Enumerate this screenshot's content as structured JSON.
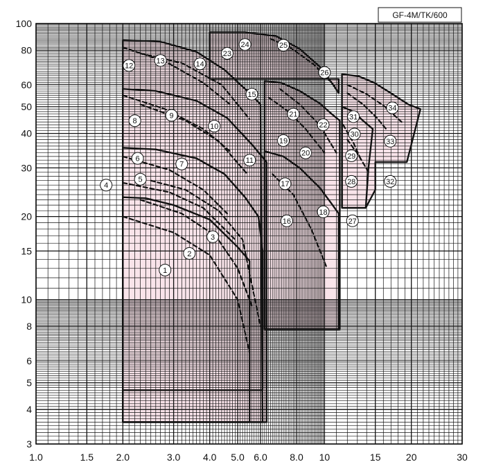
{
  "chart_data": {
    "type": "line",
    "title": "GF-4M/TK/600",
    "xscale": "log",
    "yscale": "log",
    "xlim": [
      1.0,
      30
    ],
    "ylim": [
      3,
      100
    ],
    "grid": true,
    "region_color": "#f9e4ea",
    "x_ticks": [
      {
        "value": 1.0,
        "label": "1.0"
      },
      {
        "value": 1.5,
        "label": "1.5"
      },
      {
        "value": 2.0,
        "label": "2.0"
      },
      {
        "value": 3.0,
        "label": "3.0"
      },
      {
        "value": 4.0,
        "label": "4.0"
      },
      {
        "value": 5.0,
        "label": "5.0"
      },
      {
        "value": 6.0,
        "label": "6.0"
      },
      {
        "value": 8.0,
        "label": "8.0"
      },
      {
        "value": 10,
        "label": "10"
      },
      {
        "value": 15,
        "label": "15"
      },
      {
        "value": 20,
        "label": "20"
      },
      {
        "value": 30,
        "label": "30"
      }
    ],
    "y_ticks": [
      {
        "value": 100,
        "label": "100"
      },
      {
        "value": 80,
        "label": "80"
      },
      {
        "value": 60,
        "label": "60"
      },
      {
        "value": 50,
        "label": "50"
      },
      {
        "value": 40,
        "label": "40"
      },
      {
        "value": 30,
        "label": "30"
      },
      {
        "value": 20,
        "label": "20"
      },
      {
        "value": 15,
        "label": "15"
      },
      {
        "value": 10,
        "label": "10"
      },
      {
        "value": 8,
        "label": "8"
      },
      {
        "value": 6,
        "label": "6"
      },
      {
        "value": 5,
        "label": "5"
      },
      {
        "value": 4,
        "label": "4"
      },
      {
        "value": 3,
        "label": "3"
      }
    ],
    "regions": [
      {
        "group": "A",
        "points": [
          [
            2.0,
            3.6
          ],
          [
            2.0,
            23.5
          ],
          [
            2.4,
            23.3
          ],
          [
            3.0,
            22.0
          ],
          [
            4.0,
            19.5
          ],
          [
            5.0,
            15.5
          ],
          [
            5.5,
            13.8
          ],
          [
            5.5,
            3.6
          ]
        ]
      },
      {
        "group": "B",
        "points": [
          [
            2.0,
            4.7
          ],
          [
            2.0,
            35.5
          ],
          [
            2.6,
            35.0
          ],
          [
            3.6,
            32.5
          ],
          [
            4.5,
            28.5
          ],
          [
            5.3,
            23.5
          ],
          [
            5.9,
            20.0
          ],
          [
            6.1,
            15.0
          ],
          [
            6.1,
            4.7
          ]
        ]
      },
      {
        "group": "C",
        "points": [
          [
            2.0,
            3.6
          ],
          [
            2.0,
            58.0
          ],
          [
            2.6,
            57.0
          ],
          [
            3.6,
            52.5
          ],
          [
            4.6,
            45.5
          ],
          [
            5.6,
            36.5
          ],
          [
            6.3,
            31.5
          ],
          [
            6.3,
            3.6
          ]
        ]
      },
      {
        "group": "D",
        "points": [
          [
            2.0,
            3.6
          ],
          [
            2.0,
            87.0
          ],
          [
            2.7,
            86.0
          ],
          [
            3.6,
            79.0
          ],
          [
            4.5,
            68.0
          ],
          [
            5.4,
            57.0
          ],
          [
            6.0,
            51.0
          ],
          [
            6.1,
            3.6
          ]
        ]
      },
      {
        "group": "E",
        "points": [
          [
            6.2,
            7.8
          ],
          [
            6.2,
            34.5
          ],
          [
            7.2,
            33.0
          ],
          [
            8.2,
            30.0
          ],
          [
            9.6,
            25.5
          ],
          [
            10.5,
            22.5
          ],
          [
            11.2,
            20.5
          ],
          [
            11.2,
            7.8
          ]
        ]
      },
      {
        "group": "F",
        "points": [
          [
            6.2,
            7.8
          ],
          [
            6.2,
            62.0
          ],
          [
            7.1,
            61.0
          ],
          [
            8.2,
            57.0
          ],
          [
            9.6,
            51.5
          ],
          [
            10.6,
            47.0
          ],
          [
            11.3,
            44.5
          ],
          [
            11.3,
            7.8
          ]
        ]
      },
      {
        "group": "G",
        "points": [
          [
            4.0,
            93.0
          ],
          [
            5.3,
            93.0
          ],
          [
            6.8,
            90.0
          ],
          [
            8.2,
            81.0
          ],
          [
            9.6,
            70.0
          ],
          [
            10.6,
            61.0
          ],
          [
            11.2,
            56.0
          ],
          [
            11.2,
            63.0
          ],
          [
            4.0,
            63.0
          ]
        ]
      },
      {
        "group": "H",
        "points": [
          [
            11.5,
            21.5
          ],
          [
            11.5,
            50.0
          ],
          [
            12.6,
            48.0
          ],
          [
            13.6,
            44.5
          ],
          [
            14.7,
            41.5
          ],
          [
            14.2,
            30.0
          ],
          [
            13.9,
            21.5
          ]
        ]
      },
      {
        "group": "I",
        "points": [
          [
            11.5,
            21.5
          ],
          [
            11.5,
            65.5
          ],
          [
            13.1,
            64.5
          ],
          [
            14.9,
            61.0
          ],
          [
            17.2,
            55.5
          ],
          [
            19.5,
            51.0
          ],
          [
            21.5,
            49.0
          ],
          [
            19.3,
            31.5
          ],
          [
            15.0,
            31.5
          ],
          [
            15.0,
            25.0
          ],
          [
            13.9,
            21.5
          ]
        ]
      }
    ],
    "series": [
      {
        "style": "dashed",
        "points": [
          [
            2.0,
            20.0
          ],
          [
            3.0,
            17.5
          ],
          [
            4.0,
            14.5
          ],
          [
            5.0,
            10.0
          ],
          [
            5.5,
            6.4
          ]
        ]
      },
      {
        "style": "dashed",
        "points": [
          [
            2.3,
            23.0
          ],
          [
            3.2,
            20.5
          ],
          [
            4.2,
            17.0
          ],
          [
            5.0,
            13.0
          ],
          [
            5.6,
            9.5
          ]
        ]
      },
      {
        "style": "dashed",
        "points": [
          [
            2.5,
            27.0
          ],
          [
            3.3,
            25.0
          ],
          [
            4.3,
            21.0
          ],
          [
            5.2,
            16.5
          ],
          [
            6.0,
            8.0
          ]
        ]
      },
      {
        "style": "dashed",
        "points": [
          [
            2.0,
            26.5
          ],
          [
            2.9,
            24.5
          ],
          [
            3.8,
            21.5
          ],
          [
            4.9,
            16.5
          ]
        ]
      },
      {
        "style": "dashed",
        "points": [
          [
            2.0,
            33.0
          ],
          [
            2.9,
            29.5
          ],
          [
            3.8,
            25.0
          ],
          [
            4.6,
            20.5
          ]
        ]
      },
      {
        "style": "dashed",
        "points": [
          [
            2.0,
            55.0
          ],
          [
            2.8,
            49.0
          ],
          [
            3.8,
            41.5
          ],
          [
            4.7,
            34.5
          ]
        ]
      },
      {
        "style": "dashed",
        "points": [
          [
            2.3,
            51.0
          ],
          [
            3.3,
            44.5
          ],
          [
            4.3,
            37.5
          ],
          [
            5.4,
            28.5
          ]
        ]
      },
      {
        "style": "dashed",
        "points": [
          [
            2.0,
            82.0
          ],
          [
            2.8,
            73.0
          ],
          [
            3.8,
            61.0
          ],
          [
            4.7,
            51.0
          ]
        ]
      },
      {
        "style": "dashed",
        "points": [
          [
            2.3,
            78.0
          ],
          [
            3.2,
            72.0
          ],
          [
            4.4,
            60.0
          ],
          [
            5.5,
            45.0
          ]
        ]
      },
      {
        "style": "dashed",
        "points": [
          [
            6.6,
            28.5
          ],
          [
            7.8,
            24.0
          ],
          [
            9.0,
            18.0
          ],
          [
            10.2,
            13.0
          ]
        ]
      },
      {
        "style": "dashed",
        "points": [
          [
            6.4,
            54.0
          ],
          [
            7.5,
            48.0
          ],
          [
            8.6,
            41.5
          ],
          [
            10.0,
            34.0
          ]
        ]
      },
      {
        "style": "dashed",
        "points": [
          [
            7.0,
            58.0
          ],
          [
            8.2,
            51.0
          ],
          [
            9.6,
            43.0
          ],
          [
            11.0,
            34.0
          ]
        ]
      },
      {
        "style": "dashed",
        "points": [
          [
            6.5,
            88.0
          ],
          [
            7.6,
            82.0
          ],
          [
            9.2,
            71.0
          ],
          [
            11.0,
            58.5
          ]
        ]
      },
      {
        "style": "dashed",
        "points": [
          [
            11.6,
            43.0
          ],
          [
            12.6,
            37.0
          ],
          [
            13.4,
            32.0
          ]
        ]
      },
      {
        "style": "dashed",
        "points": [
          [
            12.0,
            38.0
          ],
          [
            13.2,
            33.0
          ],
          [
            14.2,
            29.0
          ]
        ]
      },
      {
        "style": "dashed",
        "points": [
          [
            12.0,
            56.0
          ],
          [
            13.6,
            51.0
          ],
          [
            15.2,
            45.5
          ],
          [
            16.5,
            41.0
          ]
        ]
      },
      {
        "style": "dashed",
        "points": [
          [
            12.0,
            60.0
          ],
          [
            14.0,
            55.5
          ],
          [
            16.2,
            50.0
          ],
          [
            18.5,
            44.0
          ]
        ]
      }
    ],
    "annotations": [
      {
        "label": "1",
        "x": 2.8,
        "y": 12.8
      },
      {
        "label": "2",
        "x": 3.4,
        "y": 14.7
      },
      {
        "label": "3",
        "x": 4.1,
        "y": 16.9
      },
      {
        "label": "4",
        "x": 1.75,
        "y": 26.0
      },
      {
        "label": "5",
        "x": 2.3,
        "y": 27.3
      },
      {
        "label": "6",
        "x": 2.25,
        "y": 32.5
      },
      {
        "label": "7",
        "x": 3.2,
        "y": 31.0
      },
      {
        "label": "8",
        "x": 2.2,
        "y": 44.5
      },
      {
        "label": "9",
        "x": 2.95,
        "y": 46.5
      },
      {
        "label": "10",
        "x": 4.15,
        "y": 42.5
      },
      {
        "label": "11",
        "x": 5.5,
        "y": 32.0
      },
      {
        "label": "12",
        "x": 2.1,
        "y": 70.5
      },
      {
        "label": "13",
        "x": 2.7,
        "y": 73.5
      },
      {
        "label": "14",
        "x": 3.7,
        "y": 71.5
      },
      {
        "label": "15",
        "x": 5.6,
        "y": 55.5
      },
      {
        "label": "16",
        "x": 7.4,
        "y": 19.3
      },
      {
        "label": "17",
        "x": 7.3,
        "y": 26.3
      },
      {
        "label": "18",
        "x": 9.9,
        "y": 20.8
      },
      {
        "label": "19",
        "x": 7.2,
        "y": 37.7
      },
      {
        "label": "20",
        "x": 8.6,
        "y": 34.0
      },
      {
        "label": "21",
        "x": 7.8,
        "y": 47.0
      },
      {
        "label": "22",
        "x": 9.9,
        "y": 43.0
      },
      {
        "label": "23",
        "x": 4.6,
        "y": 78.0
      },
      {
        "label": "24",
        "x": 5.3,
        "y": 84.0
      },
      {
        "label": "25",
        "x": 7.2,
        "y": 83.5
      },
      {
        "label": "26",
        "x": 10.0,
        "y": 66.5
      },
      {
        "label": "27",
        "x": 12.5,
        "y": 19.3
      },
      {
        "label": "28",
        "x": 12.4,
        "y": 26.8
      },
      {
        "label": "29",
        "x": 12.4,
        "y": 33.2
      },
      {
        "label": "30",
        "x": 12.7,
        "y": 39.8
      },
      {
        "label": "31",
        "x": 12.6,
        "y": 46.0
      },
      {
        "label": "32",
        "x": 16.9,
        "y": 26.8
      },
      {
        "label": "33",
        "x": 16.9,
        "y": 37.5
      },
      {
        "label": "34",
        "x": 17.2,
        "y": 49.5
      }
    ]
  }
}
